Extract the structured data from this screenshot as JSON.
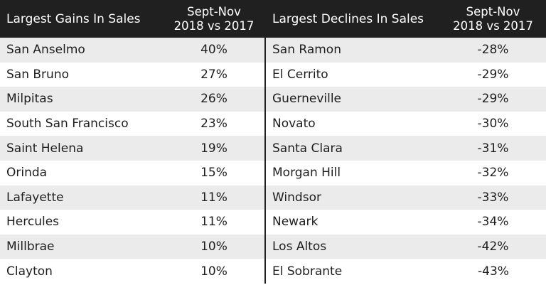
{
  "gains": {
    "header_name": "Largest Gains In Sales",
    "header_period_line1": "Sept-Nov",
    "header_period_line2": "2018 vs 2017",
    "rows": [
      {
        "city": "San Anselmo",
        "change": "40%"
      },
      {
        "city": "San Bruno",
        "change": "27%"
      },
      {
        "city": "Milpitas",
        "change": "26%"
      },
      {
        "city": "South San Francisco",
        "change": "23%"
      },
      {
        "city": "Saint Helena",
        "change": "19%"
      },
      {
        "city": "Orinda",
        "change": "15%"
      },
      {
        "city": "Lafayette",
        "change": "11%"
      },
      {
        "city": "Hercules",
        "change": "11%"
      },
      {
        "city": "Millbrae",
        "change": "10%"
      },
      {
        "city": "Clayton",
        "change": "10%"
      }
    ]
  },
  "declines": {
    "header_name": "Largest Declines In Sales",
    "header_period_line1": "Sept-Nov",
    "header_period_line2": "2018 vs 2017",
    "rows": [
      {
        "city": "San Ramon",
        "change": "-28%"
      },
      {
        "city": "El Cerrito",
        "change": "-29%"
      },
      {
        "city": "Guerneville",
        "change": "-29%"
      },
      {
        "city": "Novato",
        "change": "-30%"
      },
      {
        "city": "Santa Clara",
        "change": "-31%"
      },
      {
        "city": "Morgan Hill",
        "change": "-32%"
      },
      {
        "city": "Windsor",
        "change": "-33%"
      },
      {
        "city": "Newark",
        "change": "-34%"
      },
      {
        "city": "Los Altos",
        "change": "-42%"
      },
      {
        "city": "El Sobrante",
        "change": "-43%"
      }
    ]
  },
  "colors": {
    "header_bg": "#202020",
    "header_text": "#ffffff",
    "row_shade": "#ebebeb",
    "row_plain": "#ffffff",
    "text": "#1e1e1e"
  }
}
